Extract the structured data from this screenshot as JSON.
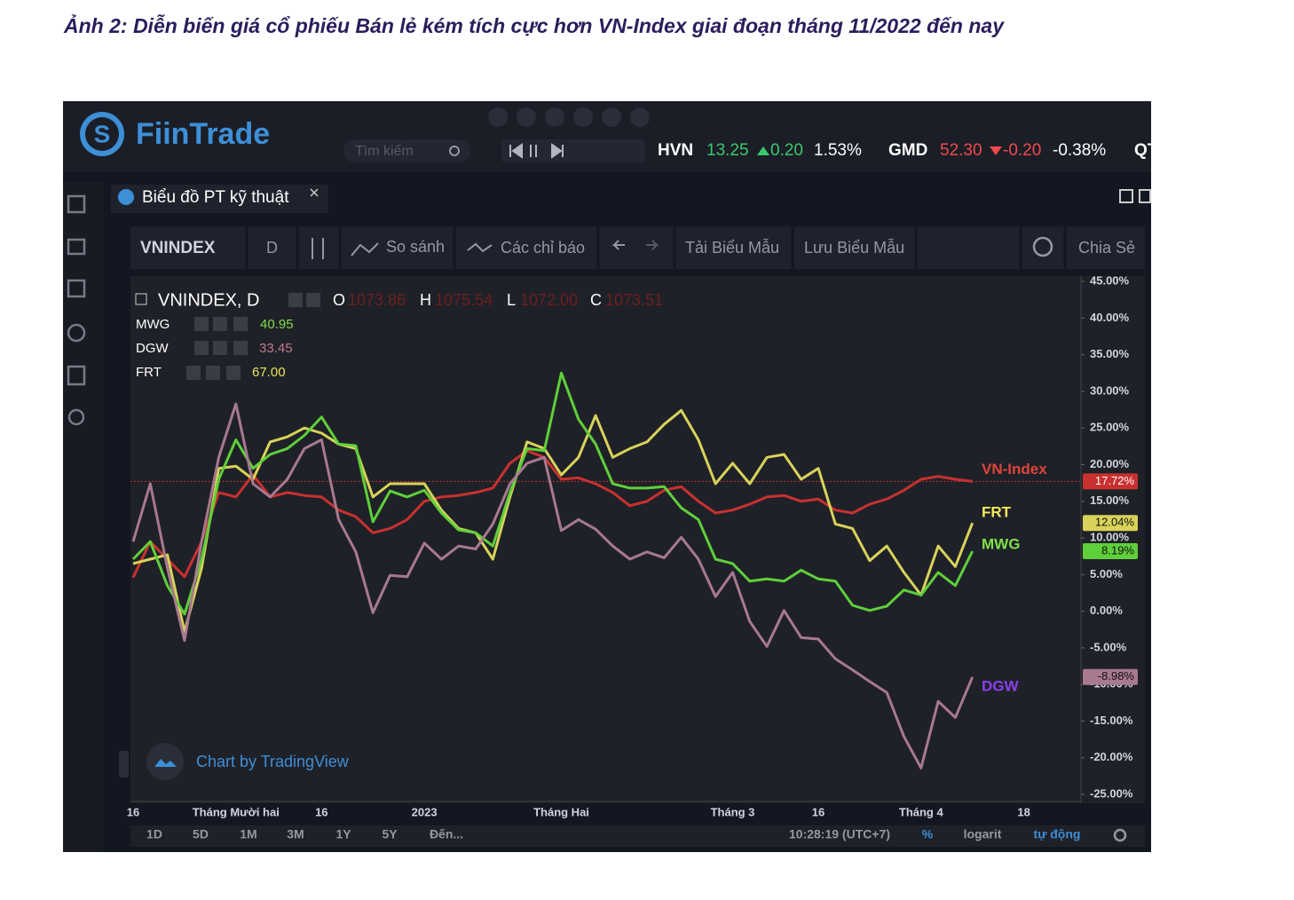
{
  "caption": "Ảnh 2: Diễn biến giá cổ phiếu Bán lẻ kém tích cực hơn VN-Index giai đoạn tháng 11/2022 đến nay",
  "header": {
    "logo": "FiinTrade",
    "search_placeholder": "Tìm kiếm",
    "ticker": [
      {
        "symbol": "HVN",
        "price": "13.25",
        "change": "0.20",
        "percent": "1.53%"
      },
      {
        "symbol": "GMD",
        "price": "52.30",
        "change": "-0.20",
        "percent": "-0.38%"
      },
      {
        "symbol": "QT"
      }
    ]
  },
  "tab": {
    "title": "Biểu đồ PT kỹ thuật"
  },
  "toolbar": {
    "symbol": "VNINDEX",
    "interval": "D",
    "compare": "So sánh",
    "indicators": "Các chỉ báo",
    "load_template": "Tải Biểu Mẫu",
    "save_template": "Lưu Biểu Mẫu",
    "share": "Chia Sẻ"
  },
  "chart_legend": {
    "main": "VNINDEX, D",
    "o_label": "O",
    "o": "1073.86",
    "h_label": "H",
    "h": "1075.54",
    "l_label": "L",
    "l": "1072.00",
    "c_label": "C",
    "c": "1073.51",
    "compares": [
      {
        "symbol": "MWG",
        "value": "40.95"
      },
      {
        "symbol": "DGW",
        "value": "33.45"
      },
      {
        "symbol": "FRT",
        "value": "67.00"
      }
    ]
  },
  "watermark": "Chart by TradingView",
  "bottom_bar": {
    "ranges": [
      "1D",
      "5D",
      "1M",
      "3M",
      "1Y",
      "5Y",
      "Đến..."
    ],
    "clock": "10:28:19 (UTC+7)",
    "percent": "%",
    "log": "logarit",
    "auto": "tự động"
  },
  "chart_data": {
    "type": "line",
    "grid": false,
    "categories": [
      "16",
      null,
      null,
      null,
      null,
      null,
      "Tháng Mười hai",
      null,
      null,
      null,
      null,
      "16",
      null,
      null,
      null,
      null,
      null,
      "2023",
      null,
      null,
      null,
      null,
      null,
      null,
      null,
      "Tháng Hai",
      null,
      null,
      null,
      null,
      null,
      null,
      null,
      null,
      null,
      "Tháng 3",
      null,
      null,
      null,
      null,
      "16",
      null,
      null,
      null,
      null,
      null,
      "Tháng 4",
      null,
      null,
      null,
      null,
      null,
      "18",
      null,
      null,
      null
    ],
    "ylim": [
      -25.6,
      45.5
    ],
    "yticks": [
      {
        "value": 45,
        "label": "45.00%"
      },
      {
        "value": 40,
        "label": "40.00%"
      },
      {
        "value": 35,
        "label": "35.00%"
      },
      {
        "value": 30,
        "label": "30.00%"
      },
      {
        "value": 25,
        "label": "25.00%"
      },
      {
        "value": 20,
        "label": "20.00%"
      },
      {
        "value": 15,
        "label": "15.00%"
      },
      {
        "value": 10,
        "label": "10.00%"
      },
      {
        "value": 5,
        "label": "5.00%"
      },
      {
        "value": 0,
        "label": "0.00%"
      },
      {
        "value": -5,
        "label": "-5.00%"
      },
      {
        "value": -10,
        "label": "-10.00%"
      },
      {
        "value": -15,
        "label": "-15.00%"
      },
      {
        "value": -20,
        "label": "-20.00%"
      },
      {
        "value": -25,
        "label": "-25.00%"
      }
    ],
    "series": [
      {
        "name": "VN-Index",
        "color": "#c8312f",
        "label_color": "#e0443a",
        "values": [
          4.6,
          9.5,
          7.1,
          4.7,
          9.5,
          16.2,
          15.6,
          18.6,
          15.6,
          16.2,
          15.8,
          15.6,
          13.8,
          12.9,
          10.7,
          11.3,
          12.5,
          15,
          15.6,
          15.8,
          16.2,
          16.8,
          20.2,
          21.9,
          21,
          18,
          18.2,
          17.4,
          16.2,
          14.4,
          15,
          16.5,
          17,
          15,
          13.4,
          13.8,
          14.6,
          15.6,
          15.8,
          15,
          15.3,
          13.8,
          13.4,
          14.6,
          15.3,
          16.5,
          18,
          18.4,
          18,
          17.72,
          null,
          null,
          null,
          null,
          null,
          null
        ],
        "value_labels": [
          null,
          null,
          null,
          null,
          null,
          null,
          null,
          null,
          null,
          null,
          null,
          null,
          null,
          null,
          null,
          null,
          null,
          null,
          null,
          null,
          null,
          null,
          null,
          null,
          null,
          null,
          null,
          null,
          null,
          null,
          null,
          null,
          null,
          null,
          null,
          null,
          null,
          null,
          null,
          null,
          null,
          null,
          null,
          null,
          null,
          null,
          null,
          null,
          null,
          "17.72%",
          null,
          null,
          null,
          null,
          null,
          null
        ]
      },
      {
        "name": "FRT",
        "color": "#d8d35a",
        "label_color": "#f3ea5a",
        "values": [
          6.5,
          7.1,
          7.7,
          -2.8,
          5.9,
          19.5,
          19.8,
          18,
          23.1,
          23.8,
          25,
          24.3,
          22.8,
          22.2,
          15.6,
          17.4,
          17.4,
          17.4,
          13.8,
          11.3,
          10.7,
          7.1,
          15.6,
          23.1,
          22.2,
          18.6,
          21,
          26.7,
          21,
          22.2,
          23.1,
          25.5,
          27.4,
          23.4,
          17.4,
          20.2,
          17.4,
          21,
          21.4,
          18,
          19.5,
          11.9,
          11.3,
          6.9,
          8.9,
          5.3,
          2.2,
          8.9,
          6.1,
          12.04,
          null,
          null,
          null,
          null,
          null,
          null
        ],
        "value_labels": [
          null,
          null,
          null,
          null,
          null,
          null,
          null,
          null,
          null,
          null,
          null,
          null,
          null,
          null,
          null,
          null,
          null,
          null,
          null,
          null,
          null,
          null,
          null,
          null,
          null,
          null,
          null,
          null,
          null,
          null,
          null,
          null,
          null,
          null,
          null,
          null,
          null,
          null,
          null,
          null,
          null,
          null,
          null,
          null,
          null,
          null,
          null,
          null,
          null,
          "12.04%",
          null,
          null,
          null,
          null,
          null,
          null
        ]
      },
      {
        "name": "MWG",
        "color": "#5fcf3a",
        "label_color": "#7ee04a",
        "values": [
          7.1,
          9.5,
          3.5,
          -0.4,
          7.1,
          18,
          23.4,
          19.5,
          21.4,
          22.2,
          24,
          26.5,
          22.8,
          22.6,
          12.2,
          16.4,
          15.6,
          16.5,
          13.4,
          11.1,
          10.7,
          8.9,
          16.2,
          22.2,
          21.9,
          32.5,
          26.2,
          22.8,
          17.4,
          16.8,
          16.8,
          17,
          14.1,
          12.5,
          7.1,
          6.5,
          4.1,
          4.4,
          4.1,
          5.6,
          4.4,
          4.1,
          0.8,
          0.1,
          0.7,
          2.9,
          2.2,
          5.3,
          3.5,
          8.19,
          null,
          null,
          null,
          null,
          null,
          null
        ],
        "value_labels": [
          null,
          null,
          null,
          null,
          null,
          null,
          null,
          null,
          null,
          null,
          null,
          null,
          null,
          null,
          null,
          null,
          null,
          null,
          null,
          null,
          null,
          null,
          null,
          null,
          null,
          null,
          null,
          null,
          null,
          null,
          null,
          null,
          null,
          null,
          null,
          null,
          null,
          null,
          null,
          null,
          null,
          null,
          null,
          null,
          null,
          null,
          null,
          null,
          null,
          "8.19%",
          null,
          null,
          null,
          null,
          null,
          null
        ]
      },
      {
        "name": "DGW",
        "color": "#a8798f",
        "label_color": "#8a3ff0",
        "values": [
          9.5,
          17.4,
          5.9,
          -4,
          9.5,
          21,
          28.3,
          17.4,
          15.6,
          18,
          22.2,
          23.4,
          12.5,
          8.1,
          -0.2,
          4.9,
          4.7,
          9.3,
          7.1,
          8.9,
          8.5,
          11.9,
          17.4,
          20.2,
          21,
          11,
          12.5,
          11.2,
          8.9,
          7.1,
          8.1,
          7.3,
          10.1,
          7.1,
          2,
          5.3,
          -1.4,
          -4.8,
          0.1,
          -3.6,
          -3.8,
          -6.5,
          -8,
          -9.6,
          -11.1,
          -17.1,
          -21.4,
          -12.3,
          -14.5,
          -8.98,
          null,
          null,
          null,
          null,
          null,
          null
        ],
        "value_labels": [
          null,
          null,
          null,
          null,
          null,
          null,
          null,
          null,
          null,
          null,
          null,
          null,
          null,
          null,
          null,
          null,
          null,
          null,
          null,
          null,
          null,
          null,
          null,
          null,
          null,
          null,
          null,
          null,
          null,
          null,
          null,
          null,
          null,
          null,
          null,
          null,
          null,
          null,
          null,
          null,
          null,
          null,
          null,
          null,
          null,
          null,
          null,
          null,
          null,
          "-8.98%",
          null,
          null,
          null,
          null,
          null,
          null
        ]
      }
    ]
  }
}
